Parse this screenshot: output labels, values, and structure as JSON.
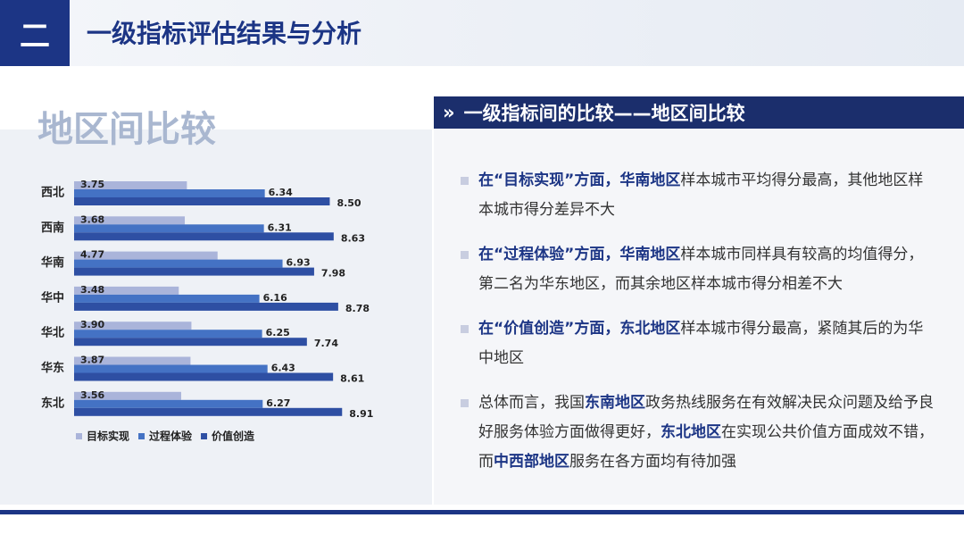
{
  "header": {
    "section": "二",
    "title": "一级指标评估结果与分析"
  },
  "subtitle": "地区间比较",
  "chart_data": {
    "type": "hbar",
    "categories": [
      "西北",
      "西南",
      "华南",
      "华中",
      "华北",
      "华东",
      "东北"
    ],
    "series": [
      {
        "name": "目标实现",
        "color": "#aab4da",
        "values": [
          3.75,
          3.68,
          4.77,
          3.48,
          3.9,
          3.87,
          3.56
        ],
        "value_labels": [
          "3.75",
          "3.68",
          "4.77",
          "3.48",
          "3.90",
          "3.87",
          "3.56"
        ]
      },
      {
        "name": "过程体验",
        "color": "#4472c4",
        "values": [
          6.34,
          6.31,
          6.93,
          6.16,
          6.25,
          6.43,
          6.27
        ],
        "value_labels": [
          "6.34",
          "6.31",
          "6.93",
          "6.16",
          "6.25",
          "6.43",
          "6.27"
        ]
      },
      {
        "name": "价值创造",
        "color": "#2e4fa3",
        "values": [
          8.5,
          8.63,
          7.98,
          8.78,
          7.74,
          8.61,
          8.91
        ],
        "value_labels": [
          "8.50",
          "8.63",
          "7.98",
          "8.78",
          "7.74",
          "8.61",
          "8.91"
        ]
      }
    ],
    "legend": "bottom-left"
  },
  "panel": {
    "marker": "»",
    "title": "一级指标间的比较——地区间比较",
    "paragraphs": [
      [
        {
          "text": "在“目标实现”方面，",
          "emphasis": true
        },
        {
          "text": "华南地区",
          "emphasis": true
        },
        {
          "text": "样本城市平均得分最高，其他地区样本城市得分差异不大",
          "emphasis": false
        }
      ],
      [
        {
          "text": "在“过程体验”方面，",
          "emphasis": true
        },
        {
          "text": "华南地区",
          "emphasis": true
        },
        {
          "text": "样本城市同样具有较高的均值得分，第二名为华东地区，而其余地区样本城市得分相差不大",
          "emphasis": false
        }
      ],
      [
        {
          "text": "在“价值创造”方面，",
          "emphasis": true
        },
        {
          "text": "东北地区",
          "emphasis": true
        },
        {
          "text": "样本城市得分最高，紧随其后的为华中地区",
          "emphasis": false
        }
      ],
      [
        {
          "text": "总体而言，我国",
          "emphasis": false
        },
        {
          "text": "东南地区",
          "emphasis": true
        },
        {
          "text": "政务热线服务在有效解决民众问题及给予良好服务体验方面做得更好，",
          "emphasis": false
        },
        {
          "text": "东北地区",
          "emphasis": true
        },
        {
          "text": "在实现公共价值方面成效不错，而",
          "emphasis": false
        },
        {
          "text": "中西部地区",
          "emphasis": true
        },
        {
          "text": "服务在各方面均有待加强",
          "emphasis": false
        }
      ]
    ]
  }
}
